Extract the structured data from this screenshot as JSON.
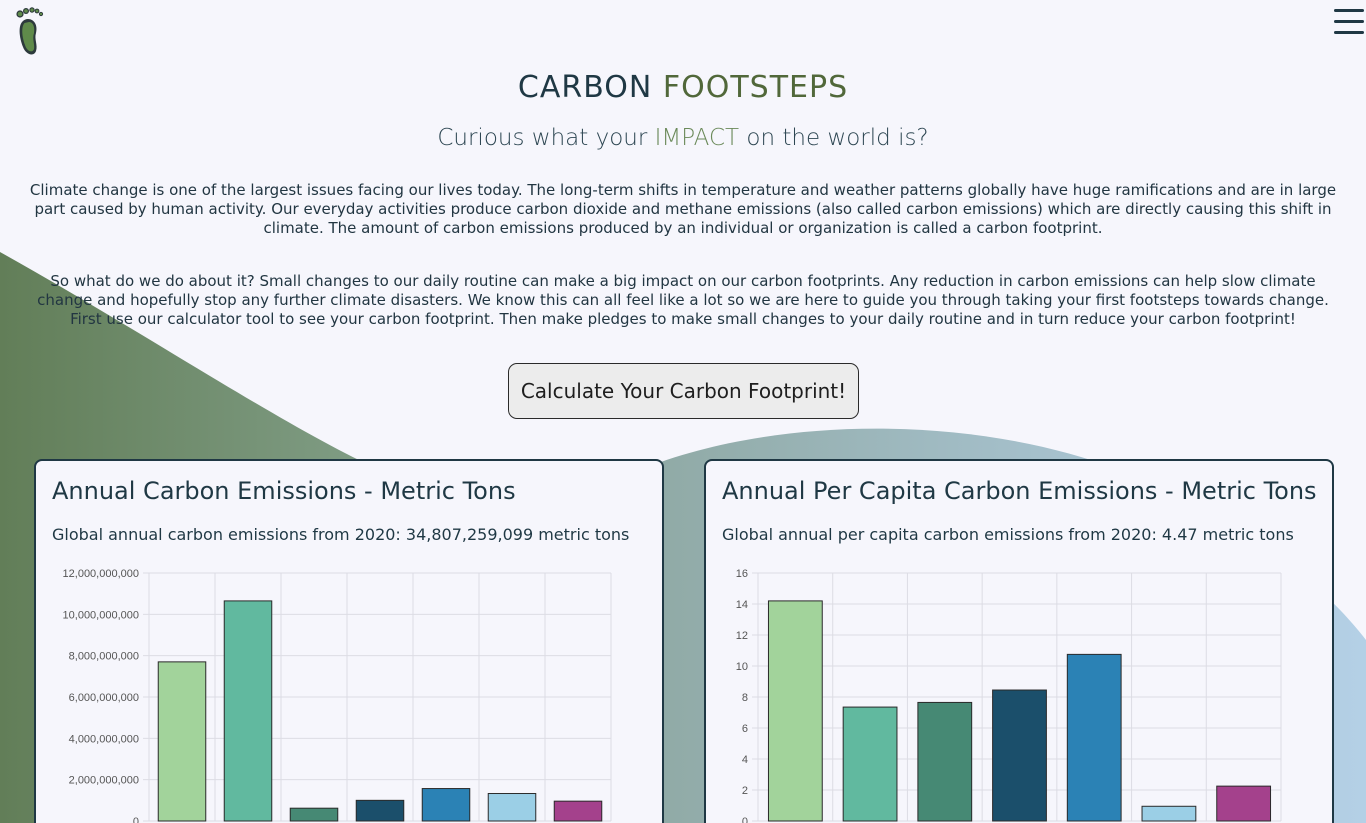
{
  "brand": {
    "logo_icon": "footprint-icon",
    "title_part1": "CARBON",
    "title_part2": "FOOTSTEPS",
    "accent_color": "#51683a"
  },
  "nav": {
    "menu_icon": "hamburger-menu-icon"
  },
  "hero": {
    "subtitle_before": "Curious what your",
    "subtitle_accent": "IMPACT",
    "subtitle_after": "on the world is?",
    "paragraph1": "Climate change is one of the largest issues facing our lives today. The long-term shifts in temperature and weather patterns globally have huge ramifications and are in large part caused by human activity. Our everyday activities produce carbon dioxide and methane emissions (also called carbon emissions) which are directly causing this shift in climate. The amount of carbon emissions produced by an individual or organization is called a carbon footprint.",
    "paragraph2": "So what do we do about it? Small changes to our daily routine can make a big impact on our carbon footprints. Any reduction in carbon emissions can help slow climate change and hopefully stop any further climate disasters. We know this can all feel like a lot so we are here to guide you through taking your first footsteps towards change. First use our calculator tool to see your carbon footprint. Then make pledges to make small changes to your daily routine and in turn reduce your carbon footprint!",
    "cta_label": "Calculate Your Carbon Footprint!"
  },
  "cards": [
    {
      "title": "Annual Carbon Emissions - Metric Tons",
      "subtitle": "Global annual carbon emissions from 2020: 34,807,259,099 metric tons"
    },
    {
      "title": "Annual Per Capita Carbon Emissions - Metric Tons",
      "subtitle": "Global annual per capita carbon emissions from 2020: 4.47 metric tons"
    }
  ],
  "chart_data": [
    {
      "type": "bar",
      "title": "",
      "ylim": [
        0,
        12000000000
      ],
      "yticks": [
        0,
        2000000000,
        4000000000,
        6000000000,
        8000000000,
        10000000000,
        12000000000
      ],
      "ytick_labels": [
        "0",
        "2,000,000,000",
        "4,000,000,000",
        "6,000,000,000",
        "8,000,000,000",
        "10,000,000,000",
        "12,000,000,000"
      ],
      "values": [
        7700000000,
        10650000000,
        620000000,
        1000000000,
        1570000000,
        1330000000,
        960000000
      ],
      "colors": [
        "#a2d39b",
        "#61b99f",
        "#468974",
        "#1b4f6b",
        "#2b82b5",
        "#9bcfe6",
        "#a4418c"
      ],
      "grid": true
    },
    {
      "type": "bar",
      "title": "",
      "ylim": [
        0,
        16
      ],
      "yticks": [
        0,
        2,
        4,
        6,
        8,
        10,
        12,
        14,
        16
      ],
      "ytick_labels": [
        "0",
        "2",
        "4",
        "6",
        "8",
        "10",
        "12",
        "14",
        "16"
      ],
      "values": [
        14.2,
        7.35,
        7.65,
        8.45,
        10.75,
        0.95,
        2.25
      ],
      "colors": [
        "#a2d39b",
        "#61b99f",
        "#468974",
        "#1b4f6b",
        "#2b82b5",
        "#9bcfe6",
        "#a4418c"
      ],
      "grid": true
    }
  ]
}
